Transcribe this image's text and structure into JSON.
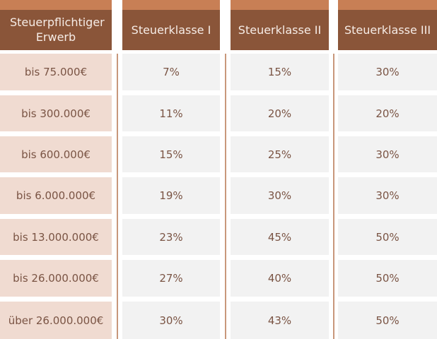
{
  "table": {
    "headers": [
      "Steuerpflichtiger Erwerb",
      "Steuerklasse I",
      "Steuerklasse II",
      "Steuerklasse III"
    ],
    "rows": [
      {
        "bracket": "bis 75.000€",
        "values": [
          "7%",
          "15%",
          "30%"
        ]
      },
      {
        "bracket": "bis 300.000€",
        "values": [
          "11%",
          "20%",
          "20%"
        ]
      },
      {
        "bracket": "bis 600.000€",
        "values": [
          "15%",
          "25%",
          "30%"
        ]
      },
      {
        "bracket": "bis 6.000.000€",
        "values": [
          "19%",
          "30%",
          "30%"
        ]
      },
      {
        "bracket": "bis 13.000.000€",
        "values": [
          "23%",
          "45%",
          "50%"
        ]
      },
      {
        "bracket": "bis 26.000.000€",
        "values": [
          "27%",
          "40%",
          "50%"
        ]
      },
      {
        "bracket": "über 26.000.000€",
        "values": [
          "30%",
          "43%",
          "50%"
        ]
      }
    ]
  },
  "colors": {
    "header_top_band": "#c87f55",
    "header_bg": "#8a5539",
    "header_text": "#f6ece6",
    "label_cell_bg": "#f0dbd1",
    "value_cell_bg": "#f2f2f2",
    "cell_text": "#7a5444",
    "divider": "#c8977b"
  }
}
